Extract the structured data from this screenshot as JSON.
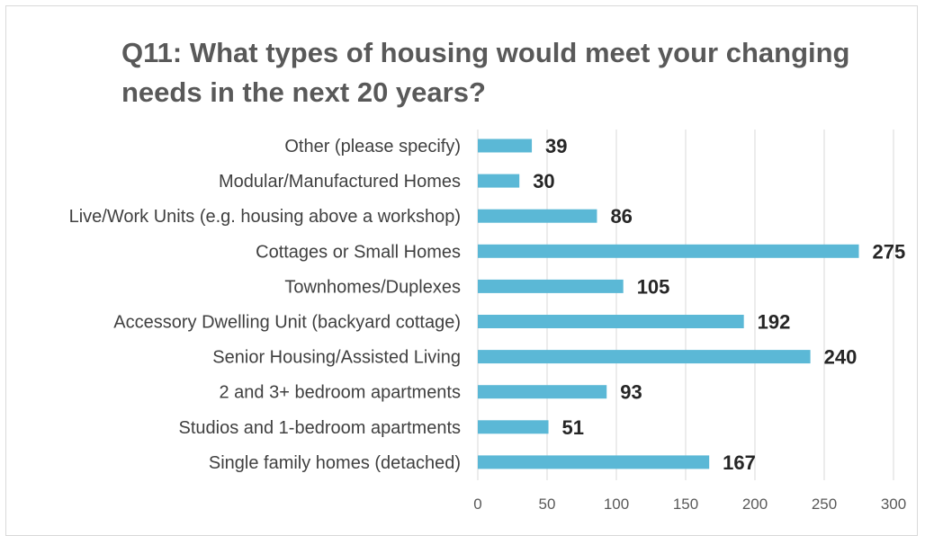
{
  "chart_data": {
    "type": "bar",
    "orientation": "horizontal",
    "title": "Q11: What types of housing would meet your changing needs in the next 20 years?",
    "xlabel": "",
    "ylabel": "",
    "categories": [
      "Other (please specify)",
      "Modular/Manufactured Homes",
      "Live/Work Units (e.g. housing above a workshop)",
      "Cottages or Small Homes",
      "Townhomes/Duplexes",
      "Accessory Dwelling Unit (backyard cottage)",
      "Senior Housing/Assisted Living",
      "2 and 3+ bedroom apartments",
      "Studios and 1-bedroom apartments",
      "Single family homes (detached)"
    ],
    "values": [
      39,
      30,
      86,
      275,
      105,
      192,
      240,
      93,
      51,
      167
    ],
    "xlim": [
      0,
      300
    ],
    "xticks": [
      0,
      50,
      100,
      150,
      200,
      250,
      300
    ],
    "grid": true,
    "legend": "none",
    "data_labels": true,
    "bar_color": "#5BB8D6",
    "gridline_color": "#d9d9d9"
  }
}
